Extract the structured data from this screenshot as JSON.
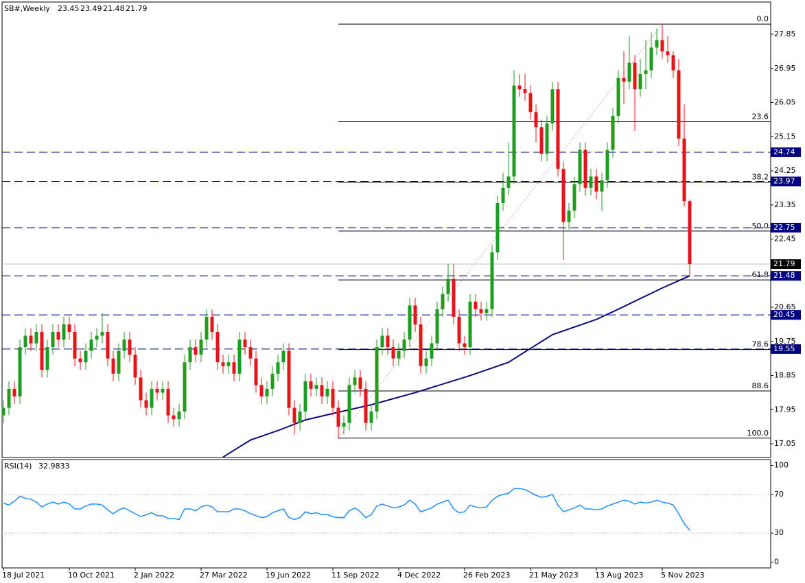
{
  "chart_data": [
    {
      "type": "candlestick",
      "title": "SB#,Weekly",
      "categories": [
        "18 Jul 2021",
        null,
        null,
        null,
        null,
        null,
        null,
        null,
        null,
        null,
        null,
        null,
        "10 Oct 2021",
        null,
        null,
        null,
        null,
        null,
        null,
        null,
        null,
        null,
        null,
        null,
        "2 Jan 2022",
        null,
        null,
        null,
        null,
        null,
        null,
        null,
        null,
        null,
        null,
        null,
        "27 Mar 2022",
        null,
        null,
        null,
        null,
        null,
        null,
        null,
        null,
        null,
        null,
        null,
        "19 Jun 2022",
        null,
        null,
        null,
        null,
        null,
        null,
        null,
        null,
        null,
        null,
        null,
        "11 Sep 2022",
        null,
        null,
        null,
        null,
        null,
        null,
        null,
        null,
        null,
        null,
        null,
        "4 Dec 2022",
        null,
        null,
        null,
        null,
        null,
        null,
        null,
        null,
        null,
        null,
        null,
        "26 Feb 2023",
        null,
        null,
        null,
        null,
        null,
        null,
        null,
        null,
        null,
        null,
        null,
        "21 May 2023",
        null,
        null,
        null,
        null,
        null,
        null,
        null,
        null,
        null,
        null,
        null,
        "13 Aug 2023",
        null,
        null,
        null,
        null,
        null,
        null,
        null,
        null,
        null,
        null,
        null,
        "5 Nov 2023",
        null,
        null,
        null,
        null,
        null
      ],
      "open": [
        17.8,
        18.0,
        18.5,
        18.3,
        19.6,
        19.9,
        19.7,
        20.0,
        19.0,
        19.6,
        20.0,
        19.8,
        20.2,
        20.0,
        19.3,
        19.2,
        19.5,
        19.8,
        19.9,
        20.0,
        19.3,
        18.9,
        19.5,
        19.8,
        19.4,
        18.8,
        18.2,
        18.0,
        18.5,
        18.4,
        18.5,
        17.8,
        17.7,
        17.9,
        19.2,
        19.6,
        19.4,
        19.8,
        20.4,
        20.0,
        19.2,
        19.1,
        19.2,
        18.9,
        19.8,
        19.6,
        19.3,
        18.6,
        18.3,
        18.5,
        18.9,
        19.2,
        19.5,
        18.0,
        17.6,
        17.9,
        18.7,
        18.5,
        18.6,
        18.3,
        18.5,
        18.0,
        17.5,
        17.6,
        18.6,
        18.8,
        18.5,
        17.6,
        17.9,
        19.6,
        19.9,
        19.6,
        19.3,
        19.5,
        19.8,
        20.7,
        20.2,
        19.1,
        19.3,
        19.7,
        20.6,
        21.0,
        21.4,
        20.4,
        19.7,
        19.6,
        20.8,
        20.6,
        20.5,
        20.6,
        22.1,
        23.4,
        23.8,
        24.1,
        26.5,
        26.4,
        26.3,
        25.8,
        25.4,
        24.7,
        25.5,
        26.4,
        24.3,
        22.9,
        23.2,
        23.9,
        24.8,
        23.8,
        24.1,
        23.7,
        24.0,
        24.8,
        25.7,
        26.7,
        26.6,
        27.1,
        26.4,
        26.8,
        26.9,
        27.5,
        27.7,
        27.4,
        27.3,
        26.9,
        25.1,
        23.45
      ],
      "high": [
        18.2,
        18.7,
        18.7,
        19.8,
        20.1,
        20.1,
        20.2,
        20.2,
        19.8,
        20.2,
        20.2,
        20.4,
        20.4,
        20.2,
        19.5,
        19.7,
        20.0,
        20.1,
        20.5,
        20.2,
        19.5,
        19.7,
        20.0,
        20.0,
        19.6,
        19.0,
        18.4,
        18.7,
        18.7,
        18.7,
        18.7,
        18.0,
        18.1,
        19.4,
        19.8,
        19.8,
        20.0,
        20.6,
        20.6,
        20.2,
        19.4,
        19.4,
        19.4,
        20.0,
        20.0,
        19.8,
        19.5,
        18.8,
        18.7,
        19.1,
        19.4,
        19.7,
        19.7,
        18.2,
        18.1,
        18.9,
        18.9,
        18.8,
        18.8,
        18.7,
        18.7,
        18.2,
        17.8,
        18.8,
        19.0,
        19.0,
        18.7,
        18.1,
        19.8,
        20.1,
        20.1,
        19.8,
        19.7,
        20.0,
        20.9,
        20.9,
        20.4,
        19.5,
        19.9,
        20.8,
        21.2,
        21.8,
        21.8,
        20.6,
        19.9,
        21.0,
        21.0,
        20.8,
        20.8,
        22.3,
        23.6,
        24.2,
        25.0,
        26.9,
        26.8,
        26.8,
        26.5,
        26.0,
        25.6,
        25.7,
        26.6,
        26.6,
        24.5,
        23.4,
        24.1,
        25.0,
        25.0,
        24.3,
        24.3,
        24.2,
        25.0,
        25.9,
        26.9,
        27.4,
        27.8,
        27.3,
        27.2,
        27.7,
        27.9,
        28.0,
        28.1,
        27.8,
        27.4,
        27.2,
        26.0,
        23.49
      ],
      "low": [
        17.6,
        17.8,
        18.1,
        18.1,
        19.4,
        19.5,
        19.5,
        18.8,
        18.8,
        19.4,
        19.6,
        19.6,
        19.8,
        19.1,
        19.0,
        19.0,
        19.3,
        19.6,
        19.7,
        19.1,
        18.7,
        18.7,
        19.3,
        19.2,
        18.6,
        18.0,
        17.8,
        17.8,
        18.2,
        18.2,
        17.6,
        17.5,
        17.5,
        17.7,
        19.0,
        19.2,
        19.2,
        19.6,
        19.8,
        19.0,
        18.9,
        18.9,
        18.7,
        18.7,
        19.4,
        19.1,
        18.4,
        18.1,
        18.1,
        18.3,
        18.7,
        19.0,
        17.8,
        17.3,
        17.4,
        17.7,
        18.3,
        18.3,
        18.1,
        18.1,
        17.8,
        17.2,
        17.3,
        17.4,
        18.4,
        18.3,
        17.4,
        17.4,
        17.7,
        19.4,
        19.4,
        19.1,
        19.1,
        19.3,
        19.6,
        20.0,
        18.9,
        18.9,
        19.1,
        19.5,
        20.4,
        20.8,
        20.2,
        19.5,
        19.4,
        19.4,
        20.4,
        20.3,
        20.3,
        20.4,
        21.9,
        23.2,
        23.6,
        23.9,
        26.2,
        26.1,
        25.6,
        25.0,
        24.5,
        24.5,
        25.3,
        24.1,
        21.9,
        22.7,
        23.0,
        23.7,
        23.6,
        23.6,
        23.5,
        23.2,
        23.8,
        24.6,
        25.5,
        26.0,
        26.4,
        25.3,
        26.2,
        26.4,
        26.7,
        27.3,
        27.2,
        27.1,
        26.7,
        24.9,
        23.3,
        21.48
      ],
      "close": [
        18.0,
        18.5,
        18.3,
        19.6,
        19.9,
        19.7,
        20.0,
        19.0,
        19.6,
        20.0,
        19.8,
        20.2,
        20.0,
        19.3,
        19.2,
        19.5,
        19.8,
        19.9,
        20.0,
        19.3,
        18.9,
        19.5,
        19.8,
        19.4,
        18.8,
        18.2,
        18.0,
        18.5,
        18.4,
        18.5,
        17.8,
        17.7,
        17.9,
        19.2,
        19.6,
        19.4,
        19.8,
        20.4,
        20.0,
        19.2,
        19.1,
        19.2,
        18.9,
        19.8,
        19.6,
        19.3,
        18.6,
        18.3,
        18.5,
        18.9,
        19.2,
        19.5,
        18.0,
        17.6,
        17.9,
        18.7,
        18.5,
        18.6,
        18.3,
        18.5,
        18.0,
        17.5,
        17.6,
        18.6,
        18.8,
        18.5,
        17.6,
        17.9,
        19.6,
        19.9,
        19.6,
        19.3,
        19.5,
        19.8,
        20.7,
        20.2,
        19.1,
        19.3,
        19.7,
        20.6,
        21.0,
        21.4,
        20.4,
        19.7,
        19.6,
        20.8,
        20.6,
        20.5,
        20.6,
        22.1,
        23.4,
        23.8,
        24.1,
        26.5,
        26.4,
        26.3,
        25.8,
        25.4,
        24.7,
        25.5,
        26.4,
        24.3,
        22.9,
        23.2,
        23.9,
        24.8,
        23.8,
        24.1,
        23.7,
        24.0,
        24.8,
        25.7,
        26.7,
        26.6,
        27.1,
        26.4,
        26.8,
        26.9,
        27.5,
        27.7,
        27.4,
        27.3,
        26.9,
        25.1,
        23.45,
        21.79
      ],
      "up_color": "#1f9e1f",
      "down_color": "#e8141a",
      "ylim": [
        16.69,
        28.7
      ],
      "yticks": [
        27.85,
        26.95,
        26.05,
        25.15,
        24.25,
        23.35,
        22.45,
        20.65,
        19.75,
        18.85,
        17.95,
        17.05
      ],
      "moving_average": {
        "x": [
          40,
          45,
          50,
          55,
          60,
          67,
          75,
          85,
          92,
          100,
          108,
          113,
          120,
          125
        ],
        "values": [
          16.7,
          17.15,
          17.4,
          17.68,
          17.85,
          18.08,
          18.4,
          18.85,
          19.2,
          19.93,
          20.33,
          20.67,
          21.16,
          21.48
        ],
        "color": "#0a0a78"
      },
      "fibonacci": {
        "x": [
          61,
          120
        ],
        "values": [
          17.2,
          28.12
        ],
        "color": "#000000",
        "trend_color": "#e89ab0",
        "levels": [
          {
            "value": 0,
            "label": "0.0"
          },
          23.6,
          38.2,
          {
            "value": 50,
            "label": "50.0"
          },
          61.8,
          78.6,
          88.6,
          {
            "value": 100,
            "label": "100.0"
          }
        ]
      },
      "horizontal_lines": {
        "values": [
          24.74,
          23.97,
          22.75,
          21.48,
          20.45,
          19.55
        ],
        "color": "#000080"
      },
      "last_price_color": "#c0c0c0"
    },
    {
      "type": "line",
      "title": "RSI(14)",
      "color": "#1e90ff",
      "values": [
        61,
        59,
        63,
        68,
        66,
        65,
        62,
        57,
        60,
        62,
        60,
        62,
        60,
        55,
        55,
        58,
        60,
        60,
        59,
        54,
        50,
        54,
        56,
        53,
        50,
        47,
        49,
        51,
        48,
        48,
        45,
        45,
        44,
        55,
        55,
        53,
        57,
        59,
        57,
        52,
        52,
        52,
        55,
        55,
        53,
        50,
        48,
        46,
        47,
        51,
        53,
        55,
        46,
        44,
        46,
        52,
        50,
        51,
        49,
        49,
        47,
        46,
        46,
        53,
        56,
        52,
        46,
        49,
        58,
        60,
        58,
        56,
        57,
        59,
        64,
        60,
        52,
        54,
        56,
        60,
        62,
        64,
        55,
        51,
        52,
        59,
        57,
        56,
        57,
        64,
        68,
        70,
        71,
        76,
        76,
        75,
        72,
        69,
        67,
        68,
        70,
        59,
        52,
        54,
        56,
        59,
        55,
        55,
        54,
        55,
        58,
        60,
        62,
        64,
        63,
        60,
        62,
        61,
        62,
        64,
        62,
        61,
        59,
        50,
        40,
        32.9833
      ],
      "ylim": [
        -6,
        106
      ],
      "yticks": [
        100,
        70,
        30,
        0
      ],
      "levels": [
        30,
        70
      ]
    }
  ]
}
